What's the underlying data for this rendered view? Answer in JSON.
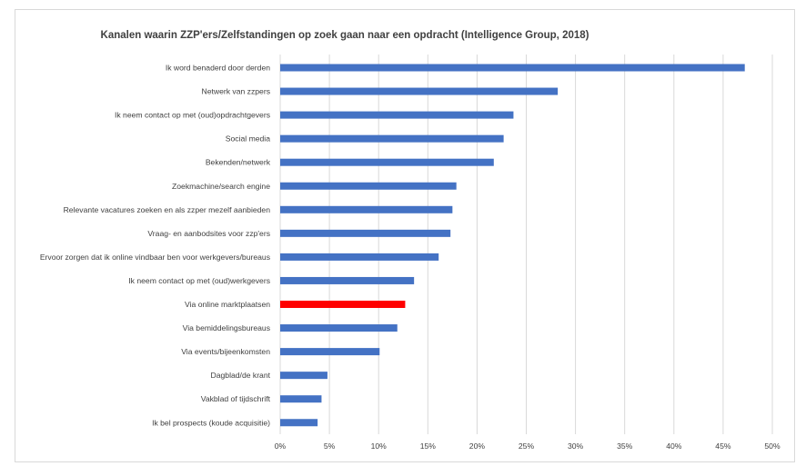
{
  "chart_data": {
    "type": "bar",
    "orientation": "horizontal",
    "title": "Kanalen waarin ZZP'ers/Zelfstandingen op zoek gaan naar een opdracht (Intelligence Group, 2018)",
    "xlabel": "",
    "ylabel": "",
    "xlim": [
      0,
      50
    ],
    "x_ticks": [
      "0%",
      "5%",
      "10%",
      "15%",
      "20%",
      "25%",
      "30%",
      "35%",
      "40%",
      "45%",
      "50%"
    ],
    "grid": "vertical",
    "legend": "none",
    "colors": {
      "default": "#4472c4",
      "highlight": "#ff0000"
    },
    "categories": [
      "Ik word benaderd door derden",
      "Netwerk van zzpers",
      "Ik neem contact op met (oud)opdrachtgevers",
      "Social media",
      "Bekenden/netwerk",
      "Zoekmachine/search engine",
      "Relevante vacatures zoeken en als zzper mezelf aanbieden",
      "Vraag- en aanbodsites voor zzp'ers",
      "Ervoor zorgen dat ik online vindbaar ben voor werkgevers/bureaus",
      "Ik neem contact op met (oud)werkgevers",
      "Via online marktplaatsen",
      "Via bemiddelingsbureaus",
      "Via events/bijeenkomsten",
      "Dagblad/de krant",
      "Vakblad of tijdschrift",
      "Ik bel prospects (koude acquisitie)"
    ],
    "values": [
      47.2,
      28.2,
      23.7,
      22.7,
      21.7,
      17.9,
      17.5,
      17.3,
      16.1,
      13.6,
      12.7,
      11.9,
      10.1,
      4.8,
      4.2,
      3.8
    ],
    "highlight_category": "Via online marktplaatsen"
  }
}
